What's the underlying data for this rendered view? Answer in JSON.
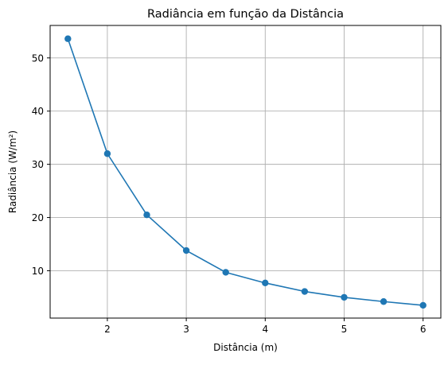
{
  "chart_data": {
    "type": "line",
    "title": "Radiância em função da Distância",
    "xlabel": "Distância (m)",
    "ylabel": "Radiância (W/m²)",
    "xlim": [
      1.275,
      6.225
    ],
    "ylim": [
      1.1,
      56.1
    ],
    "x_ticks": [
      2,
      3,
      4,
      5,
      6
    ],
    "x_tick_labels": [
      "2",
      "3",
      "4",
      "5",
      "6"
    ],
    "y_ticks": [
      10,
      20,
      30,
      40,
      50
    ],
    "y_tick_labels": [
      "10",
      "20",
      "30",
      "40",
      "50"
    ],
    "grid": true,
    "series": [
      {
        "color": "#1f77b4",
        "marker": "circle",
        "x": [
          1.5,
          2.0,
          2.5,
          3.0,
          3.5,
          4.0,
          4.5,
          5.0,
          5.5,
          6.0
        ],
        "y": [
          53.6,
          32.0,
          20.5,
          13.8,
          9.7,
          7.7,
          6.1,
          5.0,
          4.2,
          3.5
        ]
      }
    ]
  }
}
